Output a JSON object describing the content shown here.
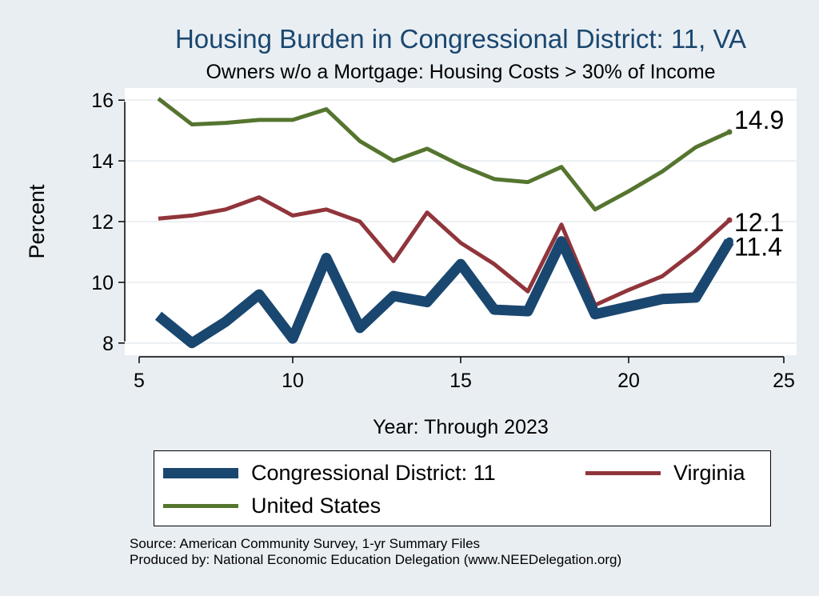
{
  "chart_data": {
    "type": "line",
    "title": "Housing Burden in Congressional District:  11, VA",
    "subtitle": "Owners w/o a Mortgage: Housing Costs > 30% of Income",
    "xlabel": "Year: Through 2023",
    "ylabel": "Percent",
    "xlim": [
      5,
      25
    ],
    "ylim": [
      7.6,
      16.4
    ],
    "xticks": [
      5,
      10,
      15,
      20,
      25
    ],
    "yticks": [
      8,
      10,
      12,
      14,
      16
    ],
    "grid": true,
    "legend_position": "bottom",
    "series": [
      {
        "name": "Congressional District:  11",
        "color": "#1a476f",
        "x": [
          6,
          7,
          8,
          9,
          10,
          11,
          12,
          13,
          14,
          15,
          16,
          17,
          18,
          19,
          20,
          21,
          22,
          23
        ],
        "y": [
          8.9,
          8.0,
          8.7,
          9.6,
          8.15,
          10.8,
          8.5,
          9.55,
          9.35,
          10.6,
          9.1,
          9.05,
          11.35,
          8.95,
          9.2,
          9.45,
          9.5,
          11.35
        ],
        "end_label": "11.4"
      },
      {
        "name": "Virginia",
        "color": "#90353b",
        "x": [
          6,
          7,
          8,
          9,
          10,
          11,
          12,
          13,
          14,
          15,
          16,
          17,
          18,
          19,
          20,
          21,
          22,
          23
        ],
        "y": [
          12.1,
          12.2,
          12.4,
          12.8,
          12.2,
          12.4,
          12.0,
          10.7,
          12.3,
          11.3,
          10.6,
          9.7,
          11.9,
          9.25,
          9.75,
          10.2,
          11.05,
          12.05
        ],
        "end_label": "12.1"
      },
      {
        "name": "United States",
        "color": "#55752f",
        "x": [
          6,
          7,
          8,
          9,
          10,
          11,
          12,
          13,
          14,
          15,
          16,
          17,
          18,
          19,
          20,
          21,
          22,
          23
        ],
        "y": [
          16.05,
          15.2,
          15.25,
          15.35,
          15.35,
          15.7,
          14.65,
          14.0,
          14.4,
          13.85,
          13.4,
          13.3,
          13.8,
          12.4,
          13.0,
          13.65,
          14.45,
          14.95
        ],
        "end_label": "14.9"
      }
    ],
    "legend": [
      {
        "label": "Congressional District:  11",
        "color": "#1a476f"
      },
      {
        "label": "Virginia",
        "color": "#90353b"
      },
      {
        "label": "United States",
        "color": "#55752f"
      }
    ]
  },
  "notes": {
    "source": "Source: American Community Survey, 1-yr Summary Files",
    "produced": "Produced by: National Economic Education Delegation (www.NEEDelegation.org)"
  },
  "colors": {
    "background": "#e9eef3",
    "plot_background": "#ffffff",
    "title": "#1a476f",
    "grid": "#e6ebef"
  }
}
